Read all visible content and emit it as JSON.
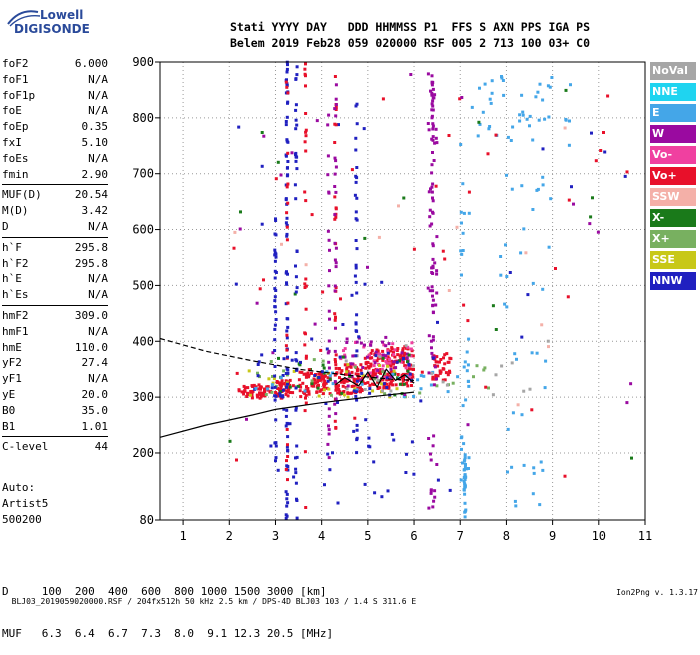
{
  "logo": {
    "line1": "Lowell",
    "line2": "DIGISONDE"
  },
  "header": {
    "line1": "Stati YYYY DAY   DDD HHMMSS P1  FFS S AXN PPS IGA PS",
    "line2": "Belem 2019 Feb28 059 020000 RSF 005 2 713 100 03+ C0"
  },
  "params": [
    {
      "name": "foF2",
      "value": "6.000"
    },
    {
      "name": "foF1",
      "value": "N/A"
    },
    {
      "name": "foF1p",
      "value": "N/A"
    },
    {
      "name": "foE",
      "value": "N/A"
    },
    {
      "name": "foEp",
      "value": "0.35"
    },
    {
      "name": "fxI",
      "value": "5.10"
    },
    {
      "name": "foEs",
      "value": "N/A"
    },
    {
      "name": "fmin",
      "value": "2.90"
    },
    {
      "sep": true
    },
    {
      "name": "MUF(D)",
      "value": "20.54"
    },
    {
      "name": "M(D)",
      "value": "3.42"
    },
    {
      "name": "D",
      "value": "N/A"
    },
    {
      "sep": true
    },
    {
      "name": "h`F",
      "value": "295.8"
    },
    {
      "name": "h`F2",
      "value": "295.8"
    },
    {
      "name": "h`E",
      "value": "N/A"
    },
    {
      "name": "h`Es",
      "value": "N/A"
    },
    {
      "sep": true
    },
    {
      "name": "hmF2",
      "value": "309.0"
    },
    {
      "name": "hmF1",
      "value": "N/A"
    },
    {
      "name": "hmE",
      "value": "110.0"
    },
    {
      "name": "yF2",
      "value": "27.4"
    },
    {
      "name": "yF1",
      "value": "N/A"
    },
    {
      "name": "yE",
      "value": "20.0"
    },
    {
      "name": "B0",
      "value": "35.0"
    },
    {
      "name": "B1",
      "value": "1.01"
    },
    {
      "sep": true
    },
    {
      "name": "C-level",
      "value": "44"
    }
  ],
  "auto": {
    "line1": "Auto:",
    "line2": "Artist5",
    "line3": "500200"
  },
  "legend": [
    {
      "label": "NoVal",
      "color": "#a6a6a6"
    },
    {
      "label": "NNE",
      "color": "#1fd4f0"
    },
    {
      "label": "E",
      "color": "#44a6e8"
    },
    {
      "label": "W",
      "color": "#9a0aa0"
    },
    {
      "label": "Vo-",
      "color": "#f040a0"
    },
    {
      "label": "Vo+",
      "color": "#e8102a"
    },
    {
      "label": "SSW",
      "color": "#f4b0a8"
    },
    {
      "label": "X-",
      "color": "#1a7a1a"
    },
    {
      "label": "X+",
      "color": "#78b060"
    },
    {
      "label": "SSE",
      "color": "#c8c818"
    },
    {
      "label": "NNW",
      "color": "#2020c0"
    }
  ],
  "bottom": {
    "line1": "D     100  200  400  600  800 1000 1500 3000 [km]",
    "line2": "MUF   6.3  6.4  6.7  7.3  8.0  9.1 12.3 20.5 [MHz]"
  },
  "footer": {
    "left": "BLJ03_2019059020000.RSF / 204fx512h 50 kHz 2.5 km / DPS-4D BLJ03 103 / 1.4 S 311.6 E",
    "right": "Ion2Png v. 1.3.17"
  },
  "chart_data": {
    "type": "scatter",
    "xlim": [
      0.5,
      11
    ],
    "ylim": [
      80,
      900
    ],
    "xticks": [
      1,
      2,
      3,
      4,
      5,
      6,
      7,
      8,
      9,
      10,
      11
    ],
    "yticks": [
      80,
      200,
      300,
      400,
      500,
      600,
      700,
      800,
      900
    ],
    "grid": true,
    "legend_position": "right",
    "clusters": [
      {
        "series": "Vo+",
        "x": [
          2.2,
          2.9
        ],
        "y": [
          298,
          322
        ],
        "n": 50
      },
      {
        "series": "Vo+",
        "x": [
          3.0,
          3.4
        ],
        "y": [
          298,
          330
        ],
        "n": 45
      },
      {
        "series": "Vo+",
        "x": [
          3.5,
          4.2
        ],
        "y": [
          305,
          345
        ],
        "n": 70
      },
      {
        "series": "Vo+",
        "x": [
          4.3,
          4.9
        ],
        "y": [
          305,
          360
        ],
        "n": 80
      },
      {
        "series": "Vo+",
        "x": [
          4.9,
          5.5
        ],
        "y": [
          315,
          385
        ],
        "n": 90
      },
      {
        "series": "Vo+",
        "x": [
          5.5,
          6.0
        ],
        "y": [
          320,
          395
        ],
        "n": 80
      },
      {
        "series": "Vo+",
        "x": [
          6.4,
          6.8
        ],
        "y": [
          330,
          380
        ],
        "n": 35
      },
      {
        "series": "Vo-",
        "x": [
          4.4,
          6.0
        ],
        "y": [
          330,
          400
        ],
        "n": 45
      },
      {
        "series": "W",
        "x": [
          4.5,
          6.0
        ],
        "y": [
          330,
          410
        ],
        "n": 40
      },
      {
        "series": "X-",
        "x": [
          2.5,
          6.0
        ],
        "y": [
          300,
          380
        ],
        "n": 30
      },
      {
        "series": "X+",
        "x": [
          2.5,
          7.8
        ],
        "y": [
          300,
          370
        ],
        "n": 30
      },
      {
        "series": "SSE",
        "x": [
          2.3,
          5.9
        ],
        "y": [
          300,
          360
        ],
        "n": 25
      },
      {
        "series": "NNW",
        "x": [
          2.5,
          6.0
        ],
        "y": [
          300,
          380
        ],
        "n": 35
      },
      {
        "series": "NNW",
        "x": [
          2.8,
          6.0
        ],
        "y": [
          110,
          420
        ],
        "n": 35
      },
      {
        "series": "E",
        "x": [
          2.5,
          7.2
        ],
        "y": [
          300,
          350
        ],
        "n": 25
      },
      {
        "series": "E",
        "x": [
          7.0,
          9.4
        ],
        "y": [
          750,
          885
        ],
        "n": 45
      },
      {
        "series": "E",
        "x": [
          7.0,
          7.2
        ],
        "y": [
          150,
          700
        ],
        "n": 30
      },
      {
        "series": "E",
        "x": [
          7.8,
          9.0
        ],
        "y": [
          100,
          700
        ],
        "n": 40
      },
      {
        "series": "W",
        "x": [
          6.3,
          6.5
        ],
        "y": [
          100,
          890
        ],
        "n": 55
      },
      {
        "series": "Vo+",
        "x": [
          2.0,
          10.8
        ],
        "y": [
          120,
          880
        ],
        "n": 40
      },
      {
        "series": "NNW",
        "x": [
          2.0,
          10.8
        ],
        "y": [
          120,
          880
        ],
        "n": 25
      },
      {
        "series": "W",
        "x": [
          2.0,
          10.8
        ],
        "y": [
          120,
          880
        ],
        "n": 20
      },
      {
        "series": "X-",
        "x": [
          2.0,
          10.8
        ],
        "y": [
          120,
          880
        ],
        "n": 15
      },
      {
        "series": "SSW",
        "x": [
          2.0,
          10.8
        ],
        "y": [
          120,
          880
        ],
        "n": 12
      },
      {
        "series": "NoVal",
        "x": [
          4.0,
          9.0
        ],
        "y": [
          300,
          420
        ],
        "n": 20
      }
    ],
    "columns": [
      {
        "series": "NNW",
        "x": 3.0,
        "y": [
          180,
          620
        ],
        "n": 35
      },
      {
        "series": "NNW",
        "x": 3.25,
        "y": [
          80,
          900
        ],
        "n": 80
      },
      {
        "series": "Vo+",
        "x": 3.25,
        "y": [
          120,
          880
        ],
        "n": 20
      },
      {
        "series": "NNW",
        "x": 3.45,
        "y": [
          80,
          900
        ],
        "n": 40
      },
      {
        "series": "Vo+",
        "x": 3.65,
        "y": [
          100,
          900
        ],
        "n": 30
      },
      {
        "series": "W",
        "x": 4.15,
        "y": [
          150,
          890
        ],
        "n": 25
      },
      {
        "series": "Vo+",
        "x": 4.3,
        "y": [
          180,
          890
        ],
        "n": 30
      },
      {
        "series": "W",
        "x": 4.3,
        "y": [
          200,
          880
        ],
        "n": 25
      },
      {
        "series": "NNW",
        "x": 4.75,
        "y": [
          190,
          850
        ],
        "n": 35
      },
      {
        "series": "W",
        "x": 6.4,
        "y": [
          400,
          880
        ],
        "n": 45
      },
      {
        "series": "E",
        "x": 7.1,
        "y": [
          80,
          200
        ],
        "n": 30
      }
    ],
    "curves": [
      {
        "name": "upper-dashed",
        "style": "dashed",
        "x": [
          0.5,
          1.5,
          2.5,
          3.5,
          4.5,
          5.5,
          6.0
        ],
        "y": [
          405,
          382,
          365,
          350,
          340,
          332,
          330
        ]
      },
      {
        "name": "lower-profile",
        "style": "solid",
        "x": [
          0.5,
          1.5,
          2.5,
          3.0,
          4.0,
          5.0,
          6.0
        ],
        "y": [
          228,
          250,
          268,
          278,
          290,
          300,
          309
        ]
      },
      {
        "name": "trace",
        "style": "solid",
        "x": [
          4.3,
          4.5,
          4.8,
          5.0,
          5.2,
          5.4,
          5.6,
          5.8,
          6.0
        ],
        "y": [
          322,
          335,
          320,
          345,
          318,
          350,
          330,
          340,
          325
        ]
      }
    ]
  }
}
